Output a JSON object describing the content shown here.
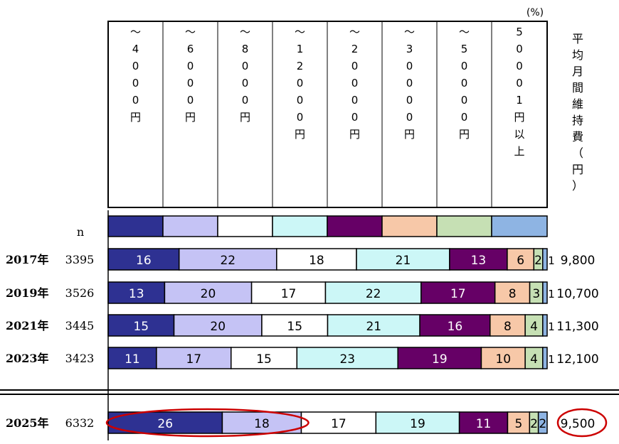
{
  "chart_data": {
    "type": "stacked-bar-100",
    "unit_note": "(%)",
    "n_header": "n",
    "categories": [
      {
        "label": "～4000円",
        "color": "#2e3192"
      },
      {
        "label": "～6000円",
        "color": "#c5c3f5"
      },
      {
        "label": "～8000円",
        "color": "#ffffff"
      },
      {
        "label": "～12000円",
        "color": "#ccf7f7"
      },
      {
        "label": "～20000円",
        "color": "#660066"
      },
      {
        "label": "～30000円",
        "color": "#f7c8a8"
      },
      {
        "label": "～50000円",
        "color": "#c6e0b4"
      },
      {
        "label": "50001円以上",
        "color": "#8eb4e3"
      }
    ],
    "avg_header": "平均月間維持費（円）",
    "rows": [
      {
        "year": "2017年",
        "n": "3395",
        "values": [
          16,
          22,
          18,
          21,
          13,
          6,
          2,
          1
        ],
        "labels": [
          "16",
          "22",
          "18",
          "21",
          "13",
          "6",
          "2",
          "1"
        ],
        "avg": "9,800"
      },
      {
        "year": "2019年",
        "n": "3526",
        "values": [
          13,
          20,
          17,
          22,
          17,
          8,
          3,
          1
        ],
        "labels": [
          "13",
          "20",
          "17",
          "22",
          "17",
          "8",
          "3",
          "1"
        ],
        "avg": "10,700"
      },
      {
        "year": "2021年",
        "n": "3445",
        "values": [
          15,
          20,
          15,
          21,
          16,
          8,
          4,
          1
        ],
        "labels": [
          "15",
          "20",
          "15",
          "21",
          "16",
          "8",
          "4",
          "1"
        ],
        "avg": "11,300"
      },
      {
        "year": "2023年",
        "n": "3423",
        "values": [
          11,
          17,
          15,
          23,
          19,
          10,
          4,
          1
        ],
        "labels": [
          "11",
          "17",
          "15",
          "23",
          "19",
          "10",
          "4",
          "1"
        ],
        "avg": "12,100"
      },
      {
        "year": "2025年",
        "n": "6332",
        "values": [
          26,
          18,
          17,
          19,
          11,
          5,
          2,
          2
        ],
        "labels": [
          "26",
          "18",
          "17",
          "19",
          "11",
          "5",
          "2",
          "2"
        ],
        "avg": "9,500"
      }
    ],
    "highlight_color": "#cc0000"
  }
}
